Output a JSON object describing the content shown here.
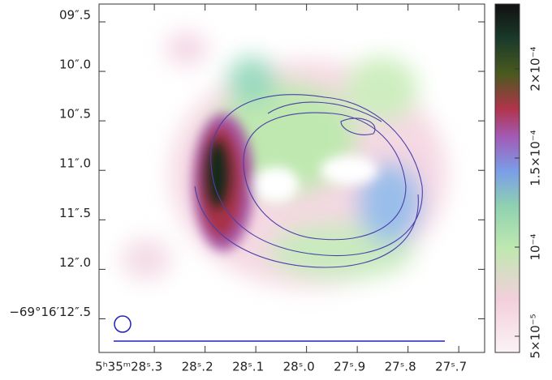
{
  "chart_data": {
    "type": "image",
    "xlim": [
      28.409,
      27.649
    ],
    "xticks": [
      {
        "value": 28.3,
        "label": "5ʰ35ᵐ28ˢ.3"
      },
      {
        "value": 28.2,
        "label": "28ˢ.2"
      },
      {
        "value": 28.1,
        "label": "28ˢ.1"
      },
      {
        "value": 28.0,
        "label": "28ˢ.0"
      },
      {
        "value": 27.9,
        "label": "27ˢ.9"
      },
      {
        "value": 27.8,
        "label": "27ˢ.8"
      },
      {
        "value": 27.7,
        "label": "27ˢ.7"
      }
    ],
    "ylim": [
      9.32,
      12.84
    ],
    "yticks": [
      {
        "value": 9.5,
        "label": "09″.5"
      },
      {
        "value": 10.0,
        "label": "10″.0"
      },
      {
        "value": 10.5,
        "label": "10″.5"
      },
      {
        "value": 11.0,
        "label": "11″.0"
      },
      {
        "value": 11.5,
        "label": "11″.5"
      },
      {
        "value": 12.0,
        "label": "12″.0"
      },
      {
        "value": 12.5,
        "label": "−69°16′12″.5"
      }
    ],
    "colorbar": {
      "lim": [
        4.09e-05,
        0.0002364
      ],
      "ticks": [
        {
          "value": 5e-05,
          "label": "5×10⁻⁵"
        },
        {
          "value": 0.0001,
          "label": "10⁻⁴"
        },
        {
          "value": 0.00015,
          "label": "1.5×10⁻⁴"
        },
        {
          "value": 0.0002,
          "label": "2×10⁻⁴"
        }
      ]
    }
  }
}
